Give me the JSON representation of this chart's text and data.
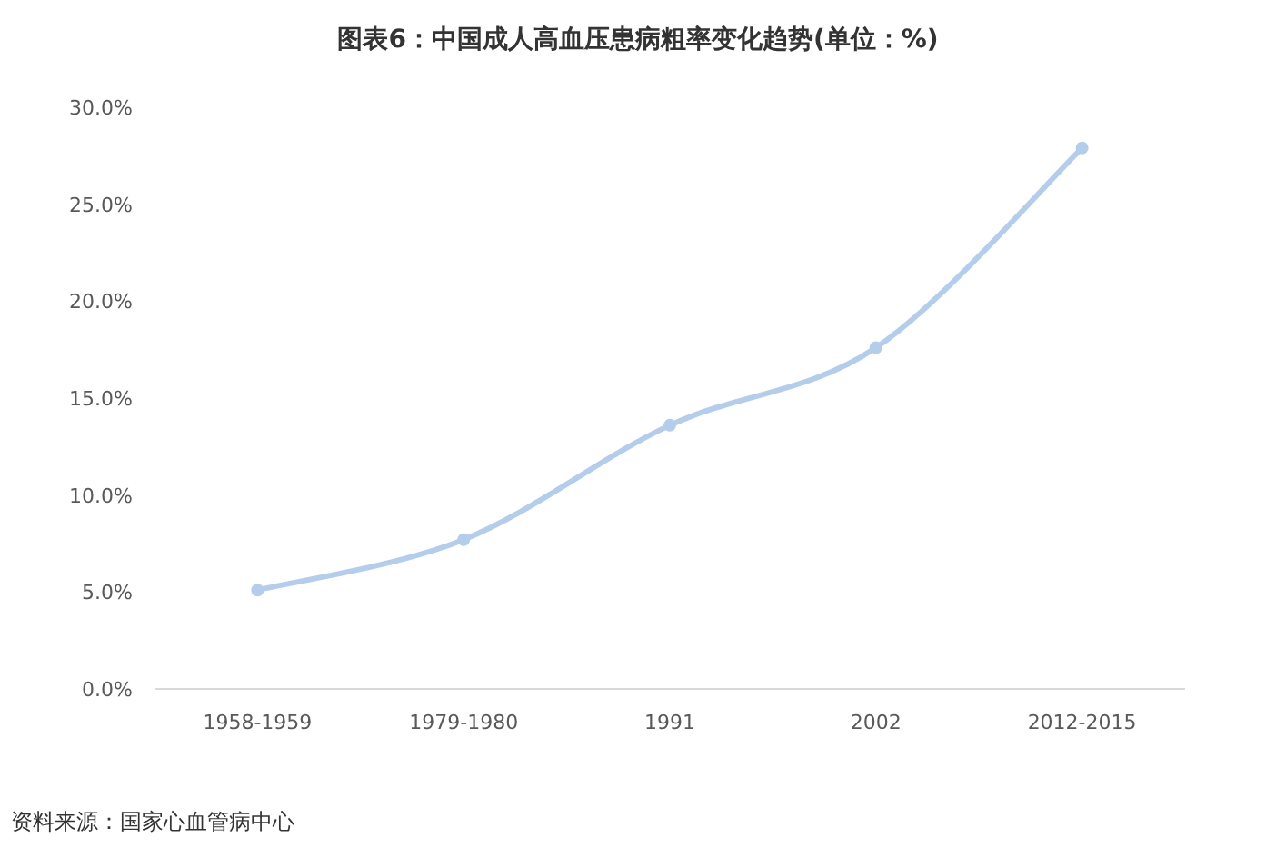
{
  "chart_data": {
    "type": "line",
    "title": "图表6：中国成人高血压患病粗率变化趋势(单位：%)",
    "categories": [
      "1958-1959",
      "1979-1980",
      "1991",
      "2002",
      "2012-2015"
    ],
    "series": [
      {
        "color": "#b4cdea",
        "values": [
          5.1,
          7.7,
          13.6,
          17.6,
          27.9
        ]
      }
    ],
    "ylim": [
      0,
      30
    ],
    "yticks": [
      {
        "value": 0,
        "label": "0.0%"
      },
      {
        "value": 5,
        "label": "5.0%"
      },
      {
        "value": 10,
        "label": "10.0%"
      },
      {
        "value": 15,
        "label": "15.0%"
      },
      {
        "value": 20,
        "label": "20.0%"
      },
      {
        "value": 25,
        "label": "25.0%"
      },
      {
        "value": 30,
        "label": "30.0%"
      }
    ],
    "marker": "circle",
    "annotations": [
      "资料来源：国家心血管病中心"
    ]
  }
}
